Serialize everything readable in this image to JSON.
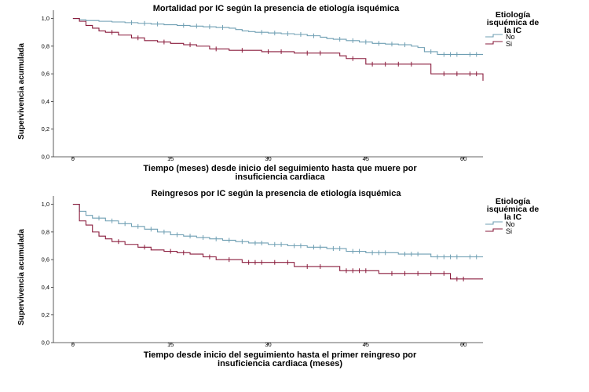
{
  "chart_data": [
    {
      "type": "line",
      "subtype": "kaplan-meier",
      "title": "Mortalidad por IC según la presencia de etiología isquémica",
      "xlabel_lines": [
        "Tiempo (meses) desde inicio del seguimiento hasta que muere por",
        "insuficiencia cardiaca"
      ],
      "ylabel": "Supervivencia acumulada",
      "xlim": [
        -3,
        63
      ],
      "ylim": [
        0,
        1.0
      ],
      "xticks": [
        0,
        15,
        30,
        45,
        60
      ],
      "xtick_labels": [
        "0",
        "15",
        "30",
        "45",
        "60"
      ],
      "yticks": [
        0,
        0.2,
        0.4,
        0.6,
        0.8,
        1.0
      ],
      "ytick_labels": [
        "0,0",
        "0,2",
        "0,4",
        "0,6",
        "0,8",
        "1,0"
      ],
      "grid": false,
      "legend": {
        "title_lines": [
          "Etiología",
          "isquémica de",
          "la IC"
        ],
        "placement": "right"
      },
      "series": [
        {
          "name": "No",
          "color": "#6f9fb3",
          "x": [
            0,
            1,
            2,
            4,
            6,
            8,
            10,
            12,
            14,
            16,
            18,
            20,
            22,
            24,
            25,
            26,
            27,
            28,
            30,
            32,
            34,
            36,
            38,
            39,
            40,
            42,
            44,
            46,
            48,
            50,
            52,
            53,
            54,
            56,
            60,
            63
          ],
          "y": [
            1.0,
            0.99,
            0.985,
            0.98,
            0.975,
            0.97,
            0.965,
            0.96,
            0.955,
            0.95,
            0.945,
            0.94,
            0.935,
            0.93,
            0.92,
            0.91,
            0.905,
            0.9,
            0.895,
            0.89,
            0.885,
            0.875,
            0.865,
            0.855,
            0.85,
            0.84,
            0.83,
            0.82,
            0.815,
            0.81,
            0.8,
            0.79,
            0.76,
            0.74,
            0.74,
            0.74
          ],
          "censored": [
            9,
            11,
            13,
            17,
            19,
            21,
            23,
            29,
            31,
            33,
            35,
            37,
            41,
            43,
            45,
            47,
            49,
            51,
            55,
            57,
            58,
            59,
            61,
            62
          ]
        },
        {
          "name": "Si",
          "color": "#8a1c3d",
          "x": [
            0,
            1,
            2,
            3,
            4,
            5,
            7,
            9,
            11,
            13,
            15,
            17,
            19,
            21,
            24,
            29,
            34,
            41,
            42,
            45,
            55,
            63
          ],
          "y": [
            1.0,
            0.98,
            0.95,
            0.93,
            0.91,
            0.9,
            0.88,
            0.86,
            0.84,
            0.83,
            0.82,
            0.81,
            0.8,
            0.78,
            0.77,
            0.76,
            0.75,
            0.73,
            0.71,
            0.67,
            0.6,
            0.55
          ],
          "censored": [
            6,
            10,
            14,
            18,
            22,
            26,
            30,
            32,
            36,
            38,
            43,
            46,
            48,
            50,
            52,
            57,
            59,
            61,
            62
          ]
        }
      ]
    },
    {
      "type": "line",
      "subtype": "kaplan-meier",
      "title": "Reingresos por IC según la presencia de etiología isquémica",
      "xlabel_lines": [
        "Tiempo desde inicio del seguimiento hasta el primer reingreso por",
        "insuficiencia cardiaca (meses)"
      ],
      "ylabel": "Supervivencia acumulada",
      "xlim": [
        -3,
        63
      ],
      "ylim": [
        0,
        1.0
      ],
      "xticks": [
        0,
        15,
        30,
        45,
        60
      ],
      "xtick_labels": [
        "0",
        "15",
        "30",
        "45",
        "60"
      ],
      "yticks": [
        0,
        0.2,
        0.4,
        0.6,
        0.8,
        1.0
      ],
      "ytick_labels": [
        "0,0",
        "0,2",
        "0,4",
        "0,6",
        "0,8",
        "1,0"
      ],
      "grid": false,
      "legend": {
        "title_lines": [
          "Etiología",
          "isquémica de",
          "la IC"
        ],
        "placement": "right"
      },
      "series": [
        {
          "name": "No",
          "color": "#6f9fb3",
          "x": [
            0,
            1,
            2,
            3,
            5,
            7,
            9,
            11,
            13,
            15,
            17,
            19,
            21,
            23,
            25,
            27,
            30,
            33,
            36,
            39,
            42,
            45,
            50,
            55,
            63
          ],
          "y": [
            1.0,
            0.95,
            0.92,
            0.9,
            0.88,
            0.86,
            0.84,
            0.82,
            0.8,
            0.78,
            0.77,
            0.76,
            0.75,
            0.74,
            0.73,
            0.72,
            0.71,
            0.7,
            0.69,
            0.68,
            0.66,
            0.65,
            0.64,
            0.62,
            0.62
          ],
          "censored": [
            4,
            6,
            8,
            10,
            12,
            14,
            16,
            18,
            20,
            22,
            24,
            26,
            28,
            29,
            31,
            32,
            34,
            35,
            37,
            38,
            40,
            41,
            43,
            44,
            46,
            47,
            48,
            51,
            52,
            53,
            56,
            57,
            58,
            59,
            61,
            62
          ]
        },
        {
          "name": "Si",
          "color": "#8a1c3d",
          "x": [
            0,
            1,
            2,
            3,
            4,
            5,
            6,
            8,
            10,
            12,
            14,
            16,
            18,
            20,
            22,
            26,
            34,
            41,
            47,
            58,
            63
          ],
          "y": [
            1.0,
            0.88,
            0.85,
            0.8,
            0.77,
            0.75,
            0.73,
            0.71,
            0.69,
            0.67,
            0.66,
            0.65,
            0.64,
            0.62,
            0.6,
            0.58,
            0.55,
            0.52,
            0.5,
            0.46,
            0.46
          ],
          "censored": [
            7,
            11,
            15,
            17,
            21,
            24,
            27,
            28,
            29,
            31,
            33,
            36,
            38,
            42,
            43,
            44,
            45,
            49,
            51,
            53,
            55,
            57,
            59,
            60
          ]
        }
      ]
    }
  ]
}
